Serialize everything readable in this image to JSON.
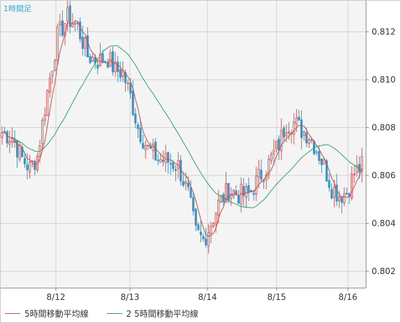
{
  "timeframe_label": "1時間足",
  "colors": {
    "up": "#d45a5a",
    "down": "#3f93c4",
    "ma5": "#c0504d",
    "ma25": "#2ea06b",
    "grid": "#d2d2d2",
    "axis": "#888888"
  },
  "chart_data": {
    "type": "candlestick",
    "title": "",
    "x_labels": [
      "8/12",
      "8/13",
      "8/14",
      "8/15",
      "8/16"
    ],
    "y_ticks": [
      0.802,
      0.804,
      0.806,
      0.808,
      0.81,
      0.812
    ],
    "ylim": [
      0.8013,
      0.8133
    ],
    "grid": true,
    "legend_position": "bottom",
    "series": [
      {
        "name": "5時間移動平均線",
        "kind": "line",
        "color": "#c0504d"
      },
      {
        "name": "2 5時間移動平均線",
        "kind": "line",
        "color": "#2ea06b"
      }
    ],
    "anchors": [
      [
        0,
        0.8078
      ],
      [
        4,
        0.8076
      ],
      [
        8,
        0.8067
      ],
      [
        11,
        0.8063
      ],
      [
        14,
        0.8068
      ],
      [
        18,
        0.8095
      ],
      [
        22,
        0.8118
      ],
      [
        26,
        0.8126
      ],
      [
        30,
        0.8122
      ],
      [
        34,
        0.811
      ],
      [
        38,
        0.8108
      ],
      [
        42,
        0.8109
      ],
      [
        45,
        0.8104
      ],
      [
        48,
        0.8103
      ],
      [
        51,
        0.8093
      ],
      [
        54,
        0.808
      ],
      [
        58,
        0.8071
      ],
      [
        62,
        0.8067
      ],
      [
        66,
        0.8066
      ],
      [
        70,
        0.8064
      ],
      [
        74,
        0.8052
      ],
      [
        77,
        0.8036
      ],
      [
        80,
        0.8033
      ],
      [
        83,
        0.804
      ],
      [
        86,
        0.8048
      ],
      [
        90,
        0.8054
      ],
      [
        94,
        0.8052
      ],
      [
        98,
        0.8052
      ],
      [
        102,
        0.8059
      ],
      [
        106,
        0.8065
      ],
      [
        110,
        0.8073
      ],
      [
        113,
        0.8082
      ],
      [
        116,
        0.8082
      ],
      [
        119,
        0.8079
      ],
      [
        122,
        0.8077
      ],
      [
        125,
        0.8071
      ],
      [
        128,
        0.8064
      ],
      [
        131,
        0.8055
      ],
      [
        134,
        0.8052
      ],
      [
        137,
        0.8053
      ],
      [
        140,
        0.8061
      ],
      [
        143,
        0.8064
      ]
    ]
  }
}
